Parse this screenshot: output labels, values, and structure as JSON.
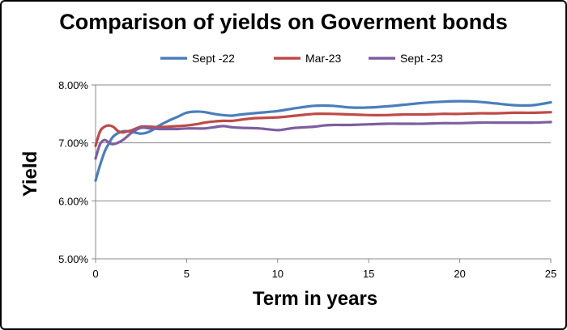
{
  "chart_data": {
    "type": "line",
    "title": "Comparison of yields on Goverment bonds",
    "xlabel": "Term in years",
    "ylabel": "Yield",
    "xlim": [
      0,
      25
    ],
    "ylim": [
      5.0,
      8.0
    ],
    "x_ticks": [
      "0",
      "5",
      "10",
      "15",
      "20",
      "25"
    ],
    "y_ticks": [
      "5.00%",
      "6.00%",
      "7.00%",
      "8.00%"
    ],
    "grid": "horizontal",
    "legend_position": "top",
    "series": [
      {
        "name": "Sept -22",
        "color": "#4a7ebb",
        "points": [
          [
            0,
            6.35
          ],
          [
            0.25,
            6.62
          ],
          [
            0.5,
            6.85
          ],
          [
            0.75,
            7.0
          ],
          [
            1,
            7.12
          ],
          [
            1.5,
            7.2
          ],
          [
            2,
            7.19
          ],
          [
            2.5,
            7.16
          ],
          [
            3,
            7.2
          ],
          [
            3.5,
            7.3
          ],
          [
            4,
            7.38
          ],
          [
            4.5,
            7.45
          ],
          [
            5,
            7.52
          ],
          [
            5.5,
            7.54
          ],
          [
            6,
            7.53
          ],
          [
            6.5,
            7.5
          ],
          [
            7,
            7.48
          ],
          [
            7.5,
            7.47
          ],
          [
            8,
            7.49
          ],
          [
            9,
            7.52
          ],
          [
            10,
            7.55
          ],
          [
            11,
            7.6
          ],
          [
            12,
            7.64
          ],
          [
            13,
            7.64
          ],
          [
            14,
            7.61
          ],
          [
            15,
            7.61
          ],
          [
            16,
            7.63
          ],
          [
            17,
            7.66
          ],
          [
            18,
            7.69
          ],
          [
            19,
            7.71
          ],
          [
            20,
            7.72
          ],
          [
            21,
            7.71
          ],
          [
            22,
            7.68
          ],
          [
            23,
            7.65
          ],
          [
            24,
            7.65
          ],
          [
            25,
            7.7
          ]
        ]
      },
      {
        "name": "Mar-23",
        "color": "#be4b48",
        "points": [
          [
            0,
            6.95
          ],
          [
            0.25,
            7.2
          ],
          [
            0.5,
            7.28
          ],
          [
            0.75,
            7.3
          ],
          [
            1,
            7.27
          ],
          [
            1.25,
            7.2
          ],
          [
            1.5,
            7.18
          ],
          [
            2,
            7.22
          ],
          [
            2.5,
            7.28
          ],
          [
            3,
            7.28
          ],
          [
            3.5,
            7.27
          ],
          [
            4,
            7.28
          ],
          [
            4.5,
            7.29
          ],
          [
            5,
            7.3
          ],
          [
            5.5,
            7.32
          ],
          [
            6,
            7.35
          ],
          [
            6.5,
            7.37
          ],
          [
            7,
            7.38
          ],
          [
            7.5,
            7.38
          ],
          [
            8,
            7.4
          ],
          [
            8.5,
            7.42
          ],
          [
            9,
            7.43
          ],
          [
            10,
            7.44
          ],
          [
            11,
            7.47
          ],
          [
            12,
            7.5
          ],
          [
            13,
            7.5
          ],
          [
            14,
            7.49
          ],
          [
            15,
            7.48
          ],
          [
            16,
            7.48
          ],
          [
            17,
            7.49
          ],
          [
            18,
            7.49
          ],
          [
            19,
            7.5
          ],
          [
            20,
            7.5
          ],
          [
            21,
            7.51
          ],
          [
            22,
            7.51
          ],
          [
            23,
            7.52
          ],
          [
            24,
            7.52
          ],
          [
            25,
            7.53
          ]
        ]
      },
      {
        "name": "Sept -23",
        "color": "#7d5fa0",
        "points": [
          [
            0,
            6.73
          ],
          [
            0.25,
            6.98
          ],
          [
            0.5,
            7.05
          ],
          [
            0.75,
            7.0
          ],
          [
            1,
            6.98
          ],
          [
            1.5,
            7.05
          ],
          [
            2,
            7.18
          ],
          [
            2.5,
            7.26
          ],
          [
            3,
            7.25
          ],
          [
            3.5,
            7.24
          ],
          [
            4,
            7.24
          ],
          [
            4.5,
            7.24
          ],
          [
            5,
            7.25
          ],
          [
            5.5,
            7.25
          ],
          [
            6,
            7.25
          ],
          [
            6.5,
            7.27
          ],
          [
            7,
            7.29
          ],
          [
            7.5,
            7.27
          ],
          [
            8,
            7.26
          ],
          [
            9,
            7.25
          ],
          [
            10,
            7.22
          ],
          [
            10.5,
            7.24
          ],
          [
            11,
            7.26
          ],
          [
            12,
            7.28
          ],
          [
            12.5,
            7.3
          ],
          [
            13,
            7.31
          ],
          [
            14,
            7.31
          ],
          [
            15,
            7.32
          ],
          [
            16,
            7.33
          ],
          [
            17,
            7.33
          ],
          [
            18,
            7.33
          ],
          [
            19,
            7.34
          ],
          [
            20,
            7.34
          ],
          [
            21,
            7.35
          ],
          [
            22,
            7.35
          ],
          [
            23,
            7.35
          ],
          [
            24,
            7.35
          ],
          [
            25,
            7.36
          ]
        ]
      }
    ]
  }
}
